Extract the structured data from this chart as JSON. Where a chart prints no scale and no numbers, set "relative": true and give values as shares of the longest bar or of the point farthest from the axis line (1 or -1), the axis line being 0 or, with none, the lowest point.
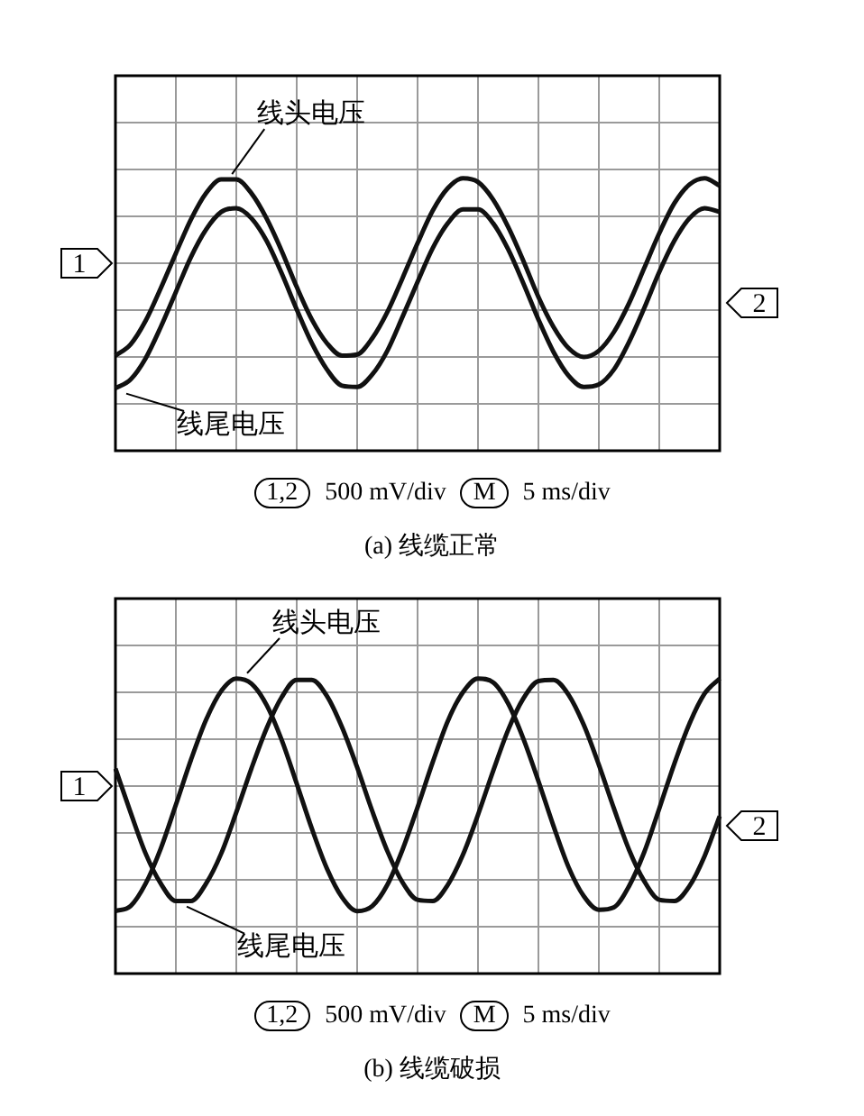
{
  "chart_data": [
    {
      "type": "line",
      "title": "(a)  线缆正常",
      "annotations": [
        "1,2",
        "500 mV/div",
        "M",
        "5 ms/div",
        "1",
        "2"
      ],
      "relative": true,
      "grid": true,
      "legend": false,
      "marker": "none",
      "categories": [
        null,
        null,
        null,
        null,
        null,
        null,
        null,
        null,
        null,
        null,
        null,
        null,
        null,
        null,
        null,
        null,
        null,
        null,
        null,
        null,
        null,
        null,
        null,
        null,
        null,
        null,
        null,
        null,
        null,
        null,
        null,
        null,
        null,
        null,
        null,
        null,
        null,
        null,
        null,
        null,
        null
      ],
      "series": [
        {
          "name": "线头电压",
          "color": "#111111",
          "values": [
            -0.74,
            -0.65,
            -0.46,
            -0.2,
            0.08,
            0.35,
            0.56,
            0.67,
            0.67,
            0.56,
            0.36,
            0.1,
            -0.19,
            -0.45,
            -0.64,
            -0.74,
            -0.73,
            -0.6,
            -0.39,
            -0.12,
            0.16,
            0.42,
            0.6,
            0.68,
            0.65,
            0.51,
            0.29,
            0.02,
            -0.27,
            -0.51,
            -0.68,
            -0.75,
            -0.7,
            -0.55,
            -0.32,
            -0.04,
            0.24,
            0.48,
            0.63,
            0.68,
            0.62
          ]
        },
        {
          "name": "线尾电压",
          "color": "#111111",
          "values": [
            -1,
            -0.93,
            -0.76,
            -0.51,
            -0.23,
            0.05,
            0.27,
            0.41,
            0.44,
            0.36,
            0.18,
            -0.08,
            -0.37,
            -0.64,
            -0.85,
            -0.98,
            -0.99,
            -0.89,
            -0.7,
            -0.43,
            -0.15,
            0.12,
            0.32,
            0.43,
            0.43,
            0.32,
            0.11,
            -0.16,
            -0.45,
            -0.71,
            -0.9,
            -0.99,
            -0.97,
            -0.85,
            -0.63,
            -0.36,
            -0.07,
            0.18,
            0.36,
            0.44,
            0.41
          ]
        }
      ]
    },
    {
      "type": "line",
      "title": "(b)  线缆破损",
      "annotations": [
        "1,2",
        "500 mV/div",
        "M",
        "5 ms/div",
        "1",
        "2"
      ],
      "relative": true,
      "grid": true,
      "legend": false,
      "marker": "none",
      "categories": [
        null,
        null,
        null,
        null,
        null,
        null,
        null,
        null,
        null,
        null,
        null,
        null,
        null,
        null,
        null,
        null,
        null,
        null,
        null,
        null,
        null,
        null,
        null,
        null,
        null,
        null,
        null,
        null,
        null,
        null,
        null,
        null,
        null,
        null,
        null,
        null,
        null,
        null,
        null,
        null,
        null
      ],
      "series": [
        {
          "name": "线头电压",
          "color": "#111111",
          "values": [
            -1,
            -0.96,
            -0.78,
            -0.5,
            -0.15,
            0.21,
            0.53,
            0.76,
            0.86,
            0.82,
            0.65,
            0.37,
            0.02,
            -0.34,
            -0.66,
            -0.89,
            -1,
            -0.96,
            -0.79,
            -0.51,
            -0.17,
            0.19,
            0.52,
            0.75,
            0.86,
            0.83,
            0.66,
            0.38,
            0.04,
            -0.32,
            -0.65,
            -0.88,
            -0.99,
            -0.97,
            -0.8,
            -0.53,
            -0.18,
            0.18,
            0.5,
            0.74,
            0.86
          ]
        },
        {
          "name": "线尾电压",
          "color": "#111111",
          "values": [
            0.14,
            -0.21,
            -0.54,
            -0.78,
            -0.92,
            -0.92,
            -0.78,
            -0.54,
            -0.21,
            0.14,
            0.46,
            0.71,
            0.85,
            0.85,
            0.72,
            0.47,
            0.15,
            -0.2,
            -0.52,
            -0.77,
            -0.91,
            -0.92,
            -0.79,
            -0.55,
            -0.23,
            0.12,
            0.45,
            0.7,
            0.84,
            0.85,
            0.73,
            0.49,
            0.17,
            -0.18,
            -0.51,
            -0.76,
            -0.91,
            -0.92,
            -0.8,
            -0.56,
            -0.24
          ]
        }
      ]
    }
  ]
}
